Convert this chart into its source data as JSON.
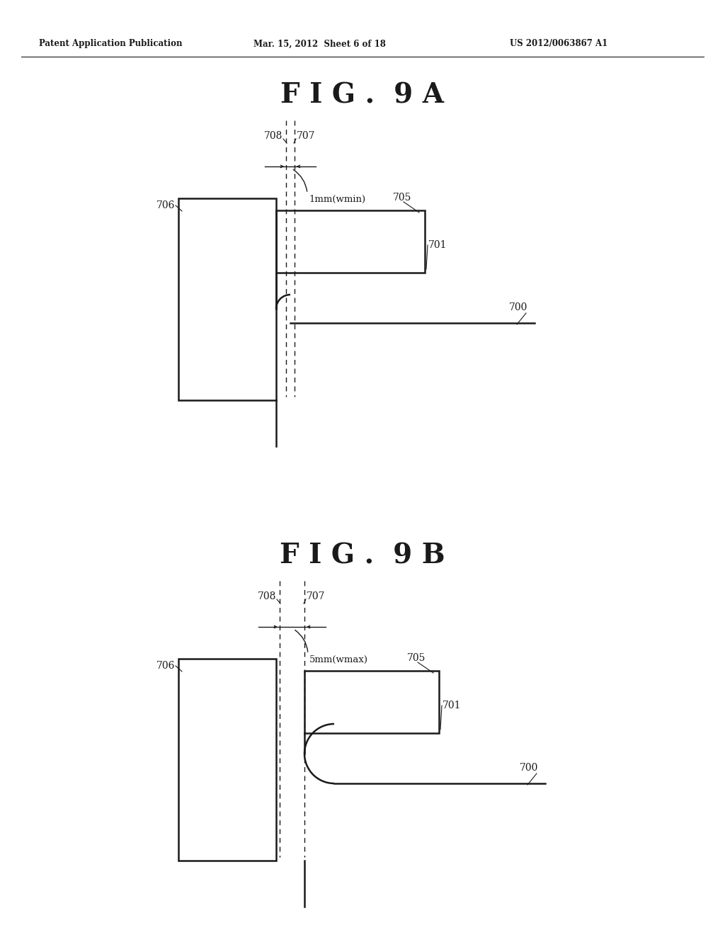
{
  "header_left": "Patent Application Publication",
  "header_center": "Mar. 15, 2012  Sheet 6 of 18",
  "header_right": "US 2012/0063867 A1",
  "fig_9a_title": "F I G .  9 A",
  "fig_9b_title": "F I G .  9 B",
  "background_color": "#ffffff",
  "line_color": "#1a1a1a",
  "fig9a": {
    "label_706": "706",
    "label_705": "705",
    "label_701": "701",
    "label_700": "700",
    "label_708": "708",
    "label_707": "707",
    "label_w": "1mm(wmin)"
  },
  "fig9b": {
    "label_706": "706",
    "label_705": "705",
    "label_701": "701",
    "label_700": "700",
    "label_708": "708",
    "label_707": "707",
    "label_w": "5mm(wmax)"
  }
}
